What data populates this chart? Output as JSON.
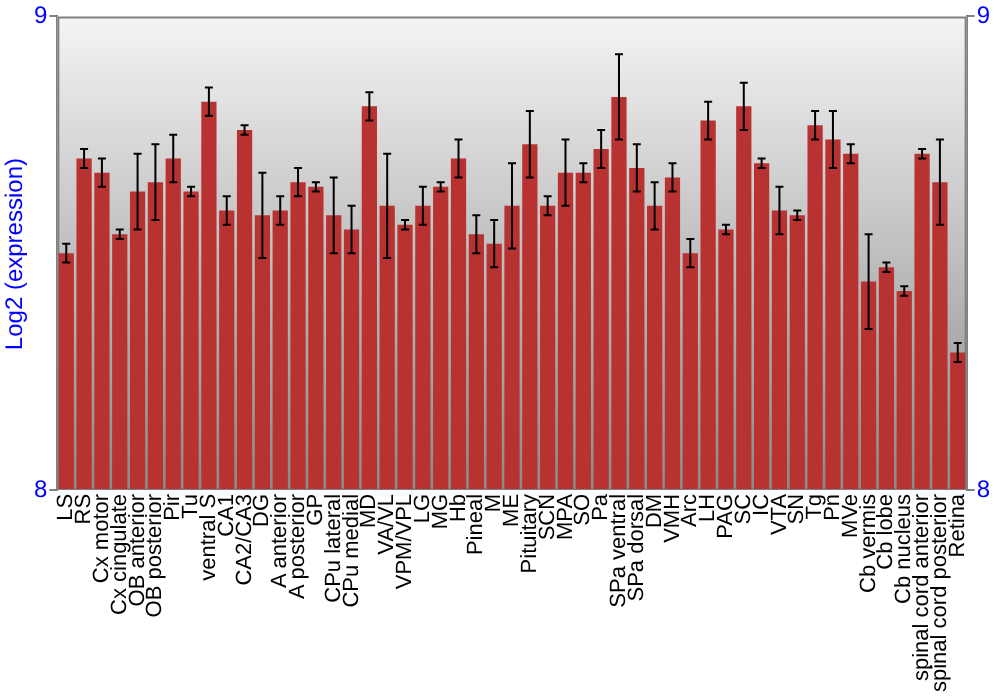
{
  "chart_data": {
    "type": "bar",
    "ylabel": "Log2 (expression)",
    "categories": [
      "LS",
      "RS",
      "Cx motor",
      "Cx cingulate",
      "OB anterior",
      "OB posterior",
      "Pir",
      "Tu",
      "ventral S",
      "CA1",
      "CA2/CA3",
      "DG",
      "A anterior",
      "A posterior",
      "GP",
      "CPu lateral",
      "CPu medial",
      "MD",
      "VA/VL",
      "VPM/VPL",
      "LG",
      "MG",
      "Hb",
      "Pineal",
      "M",
      "ME",
      "Pituitary",
      "SCN",
      "MPA",
      "SO",
      "Pa",
      "SPa ventral",
      "SPa dorsal",
      "DM",
      "VMH",
      "Arc",
      "LH",
      "PAG",
      "SC",
      "IC",
      "VTA",
      "SN",
      "Tg",
      "Pn",
      "MVe",
      "Cb vermis",
      "Cb lobe",
      "Cb nucleus",
      "spinal cord anterior",
      "spinal cord posterior",
      "Retina"
    ],
    "values": [
      8.5,
      8.7,
      8.67,
      8.54,
      8.63,
      8.65,
      8.7,
      8.63,
      8.82,
      8.59,
      8.76,
      8.58,
      8.59,
      8.65,
      8.64,
      8.58,
      8.55,
      8.81,
      8.6,
      8.56,
      8.6,
      8.64,
      8.7,
      8.54,
      8.52,
      8.6,
      8.73,
      8.6,
      8.67,
      8.67,
      8.72,
      8.83,
      8.68,
      8.6,
      8.66,
      8.5,
      8.78,
      8.55,
      8.81,
      8.69,
      8.59,
      8.58,
      8.77,
      8.74,
      8.71,
      8.44,
      8.47,
      8.42,
      8.71,
      8.65,
      8.29
    ],
    "errors": [
      0.02,
      0.02,
      0.03,
      0.01,
      0.08,
      0.08,
      0.05,
      0.01,
      0.03,
      0.03,
      0.01,
      0.09,
      0.03,
      0.03,
      0.01,
      0.08,
      0.05,
      0.03,
      0.11,
      0.01,
      0.04,
      0.01,
      0.04,
      0.04,
      0.05,
      0.09,
      0.07,
      0.02,
      0.07,
      0.02,
      0.04,
      0.09,
      0.05,
      0.05,
      0.03,
      0.03,
      0.04,
      0.01,
      0.05,
      0.01,
      0.05,
      0.01,
      0.03,
      0.06,
      0.02,
      0.1,
      0.01,
      0.01,
      0.01,
      0.09,
      0.02
    ],
    "color": "#b83232",
    "ylim": [
      8,
      9
    ],
    "yticks": [
      8,
      9
    ],
    "y2lim": [
      8,
      9
    ],
    "y2ticks": [
      8,
      9
    ],
    "grid": false,
    "legend": false
  }
}
